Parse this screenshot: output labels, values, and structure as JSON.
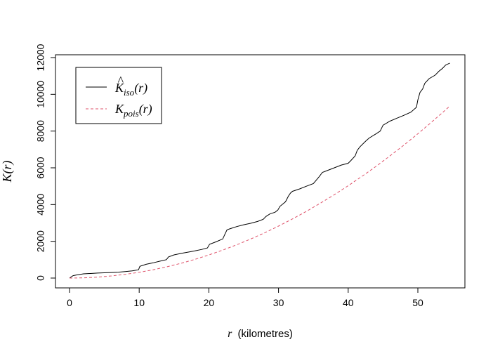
{
  "chart_data": {
    "type": "line",
    "xlabel_symbol": "r",
    "xlabel_unit": "(kilometres)",
    "ylabel_main": "K",
    "ylabel_arg": "(r)",
    "xlim": [
      0,
      55
    ],
    "ylim": [
      0,
      12000
    ],
    "x_ticks": [
      "0",
      "10",
      "20",
      "30",
      "40",
      "50"
    ],
    "y_ticks": [
      "0",
      "2000",
      "4000",
      "6000",
      "8000",
      "10000",
      "12000"
    ],
    "grid": false,
    "legend_position": "top-left",
    "legend": [
      {
        "main": "K",
        "hat": "^",
        "sub": "iso",
        "arg": "(r)"
      },
      {
        "main": "K",
        "hat": "",
        "sub": "pois",
        "arg": "(r)"
      }
    ],
    "series": [
      {
        "style": "solid",
        "color": "#000000",
        "x": [
          0,
          0.5,
          1,
          2,
          3,
          4,
          5,
          6,
          7,
          8,
          9,
          9.9,
          10.1,
          11,
          12,
          13,
          13.9,
          14.2,
          15,
          16,
          17,
          18,
          19,
          19.8,
          20.1,
          21,
          22,
          22.3,
          22.6,
          23,
          24,
          25,
          26,
          27,
          27.8,
          28.2,
          28.8,
          29.5,
          29.9,
          30.2,
          31,
          31.4,
          31.7,
          32,
          33,
          34,
          35,
          35.8,
          36.3,
          37,
          38,
          39,
          40,
          40.4,
          41,
          41.3,
          41.7,
          42.5,
          43,
          44,
          44.6,
          45,
          46,
          47,
          48,
          49,
          49.8,
          50,
          50.3,
          50.7,
          51,
          51.6,
          52.5,
          53,
          53.5,
          54,
          54.6
        ],
        "y": [
          0,
          130,
          170,
          230,
          250,
          270,
          285,
          300,
          320,
          350,
          390,
          450,
          640,
          750,
          830,
          920,
          1000,
          1150,
          1260,
          1340,
          1410,
          1480,
          1560,
          1640,
          1840,
          1970,
          2130,
          2380,
          2620,
          2680,
          2800,
          2900,
          2980,
          3080,
          3200,
          3350,
          3500,
          3580,
          3700,
          3900,
          4150,
          4450,
          4620,
          4720,
          4850,
          5000,
          5140,
          5500,
          5750,
          5850,
          6000,
          6150,
          6250,
          6400,
          6650,
          6950,
          7150,
          7450,
          7620,
          7850,
          8000,
          8320,
          8540,
          8700,
          8860,
          9030,
          9300,
          9700,
          10100,
          10300,
          10600,
          10850,
          11050,
          11250,
          11400,
          11600,
          11700
        ]
      },
      {
        "style": "dashed",
        "color": "#DF536B",
        "x": [
          0,
          2,
          4,
          6,
          8,
          10,
          12,
          14,
          16,
          18,
          20,
          22,
          24,
          26,
          28,
          30,
          32,
          34,
          36,
          38,
          40,
          42,
          44,
          46,
          48,
          50,
          52,
          54,
          54.6
        ],
        "y": [
          0,
          12,
          50,
          113,
          201,
          314,
          452,
          616,
          804,
          1018,
          1257,
          1521,
          1810,
          2124,
          2463,
          2827,
          3217,
          3632,
          4072,
          4536,
          5027,
          5542,
          6082,
          6648,
          7238,
          7854,
          8495,
          9161,
          9366
        ]
      }
    ]
  }
}
